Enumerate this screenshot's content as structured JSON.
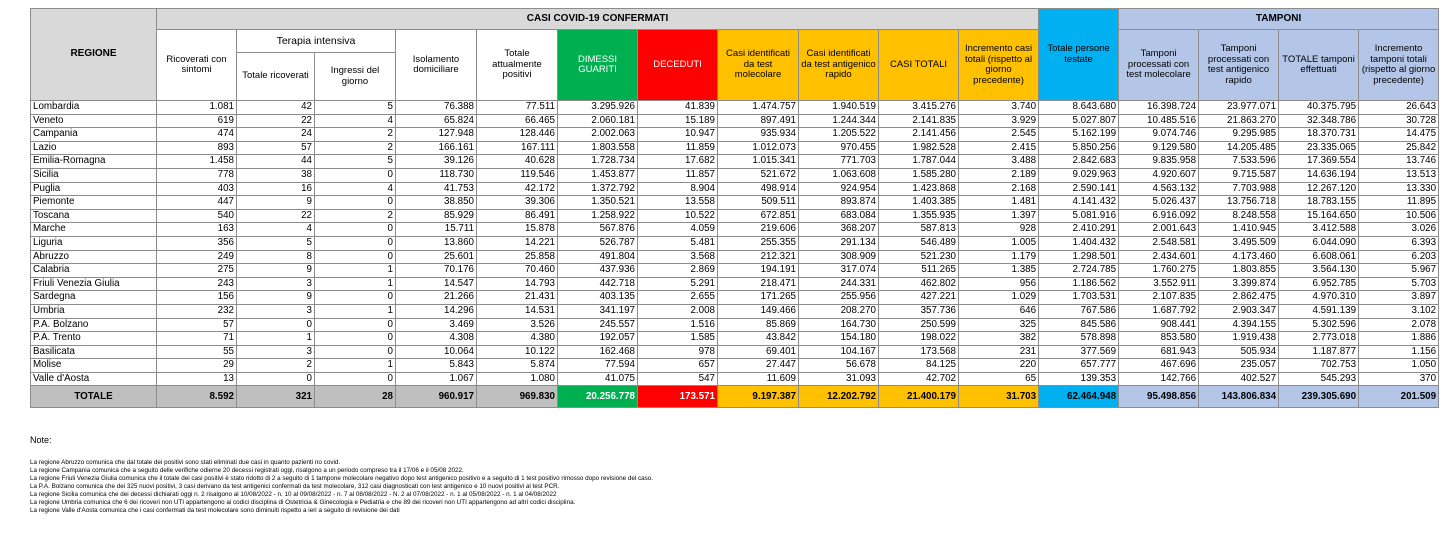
{
  "table": {
    "regione_header": "REGIONE",
    "casi_title": "CASI COVID-19 CONFERMATI",
    "terapia_header": "Terapia intensiva",
    "tamponi_title": "TAMPONI",
    "columns": [
      "Ricoverati con sintomi",
      "Totale ricoverati",
      "Ingressi del giorno",
      "Isolamento domiciliare",
      "Totale attualmente positivi",
      "DIMESSI GUARITI",
      "DECEDUTI",
      "Casi identificati da test molecolare",
      "Casi identificati da test antigenico rapido",
      "CASI TOTALI",
      "Incremento casi totali (rispetto al giorno precedente)",
      "Totale persone testate",
      "Tamponi processati con test molecolare",
      "Tamponi processati con test antigenico rapido",
      "TOTALE tamponi effettuati",
      "Incremento tamponi totali (rispetto al giorno precedente)"
    ],
    "rows": [
      [
        "Lombardia",
        "1.081",
        "42",
        "5",
        "76.388",
        "77.511",
        "3.295.926",
        "41.839",
        "1.474.757",
        "1.940.519",
        "3.415.276",
        "3.740",
        "8.643.680",
        "16.398.724",
        "23.977.071",
        "40.375.795",
        "26.643"
      ],
      [
        "Veneto",
        "619",
        "22",
        "4",
        "65.824",
        "66.465",
        "2.060.181",
        "15.189",
        "897.491",
        "1.244.344",
        "2.141.835",
        "3.929",
        "5.027.807",
        "10.485.516",
        "21.863.270",
        "32.348.786",
        "30.728"
      ],
      [
        "Campania",
        "474",
        "24",
        "2",
        "127.948",
        "128.446",
        "2.002.063",
        "10.947",
        "935.934",
        "1.205.522",
        "2.141.456",
        "2.545",
        "5.162.199",
        "9.074.746",
        "9.295.985",
        "18.370.731",
        "14.475"
      ],
      [
        "Lazio",
        "893",
        "57",
        "2",
        "166.161",
        "167.111",
        "1.803.558",
        "11.859",
        "1.012.073",
        "970.455",
        "1.982.528",
        "2.415",
        "5.850.256",
        "9.129.580",
        "14.205.485",
        "23.335.065",
        "25.842"
      ],
      [
        "Emilia-Romagna",
        "1.458",
        "44",
        "5",
        "39.126",
        "40.628",
        "1.728.734",
        "17.682",
        "1.015.341",
        "771.703",
        "1.787.044",
        "3.488",
        "2.842.683",
        "9.835.958",
        "7.533.596",
        "17.369.554",
        "13.746"
      ],
      [
        "Sicilia",
        "778",
        "38",
        "0",
        "118.730",
        "119.546",
        "1.453.877",
        "11.857",
        "521.672",
        "1.063.608",
        "1.585.280",
        "2.189",
        "9.029.963",
        "4.920.607",
        "9.715.587",
        "14.636.194",
        "13.513"
      ],
      [
        "Puglia",
        "403",
        "16",
        "4",
        "41.753",
        "42.172",
        "1.372.792",
        "8.904",
        "498.914",
        "924.954",
        "1.423.868",
        "2.168",
        "2.590.141",
        "4.563.132",
        "7.703.988",
        "12.267.120",
        "13.330"
      ],
      [
        "Piemonte",
        "447",
        "9",
        "0",
        "38.850",
        "39.306",
        "1.350.521",
        "13.558",
        "509.511",
        "893.874",
        "1.403.385",
        "1.481",
        "4.141.432",
        "5.026.437",
        "13.756.718",
        "18.783.155",
        "11.895"
      ],
      [
        "Toscana",
        "540",
        "22",
        "2",
        "85.929",
        "86.491",
        "1.258.922",
        "10.522",
        "672.851",
        "683.084",
        "1.355.935",
        "1.397",
        "5.081.916",
        "6.916.092",
        "8.248.558",
        "15.164.650",
        "10.506"
      ],
      [
        "Marche",
        "163",
        "4",
        "0",
        "15.711",
        "15.878",
        "567.876",
        "4.059",
        "219.606",
        "368.207",
        "587.813",
        "928",
        "2.410.291",
        "2.001.643",
        "1.410.945",
        "3.412.588",
        "3.026"
      ],
      [
        "Liguria",
        "356",
        "5",
        "0",
        "13.860",
        "14.221",
        "526.787",
        "5.481",
        "255.355",
        "291.134",
        "546.489",
        "1.005",
        "1.404.432",
        "2.548.581",
        "3.495.509",
        "6.044.090",
        "6.393"
      ],
      [
        "Abruzzo",
        "249",
        "8",
        "0",
        "25.601",
        "25.858",
        "491.804",
        "3.568",
        "212.321",
        "308.909",
        "521.230",
        "1.179",
        "1.298.501",
        "2.434.601",
        "4.173.460",
        "6.608.061",
        "6.203"
      ],
      [
        "Calabria",
        "275",
        "9",
        "1",
        "70.176",
        "70.460",
        "437.936",
        "2.869",
        "194.191",
        "317.074",
        "511.265",
        "1.385",
        "2.724.785",
        "1.760.275",
        "1.803.855",
        "3.564.130",
        "5.967"
      ],
      [
        "Friuli Venezia Giulia",
        "243",
        "3",
        "1",
        "14.547",
        "14.793",
        "442.718",
        "5.291",
        "218.471",
        "244.331",
        "462.802",
        "956",
        "1.186.562",
        "3.552.911",
        "3.399.874",
        "6.952.785",
        "5.703"
      ],
      [
        "Sardegna",
        "156",
        "9",
        "0",
        "21.266",
        "21.431",
        "403.135",
        "2.655",
        "171.265",
        "255.956",
        "427.221",
        "1.029",
        "1.703.531",
        "2.107.835",
        "2.862.475",
        "4.970.310",
        "3.897"
      ],
      [
        "Umbria",
        "232",
        "3",
        "1",
        "14.296",
        "14.531",
        "341.197",
        "2.008",
        "149.466",
        "208.270",
        "357.736",
        "646",
        "767.586",
        "1.687.792",
        "2.903.347",
        "4.591.139",
        "3.102"
      ],
      [
        "P.A. Bolzano",
        "57",
        "0",
        "0",
        "3.469",
        "3.526",
        "245.557",
        "1.516",
        "85.869",
        "164.730",
        "250.599",
        "325",
        "845.586",
        "908.441",
        "4.394.155",
        "5.302.596",
        "2.078"
      ],
      [
        "P.A. Trento",
        "71",
        "1",
        "0",
        "4.308",
        "4.380",
        "192.057",
        "1.585",
        "43.842",
        "154.180",
        "198.022",
        "382",
        "578.898",
        "853.580",
        "1.919.438",
        "2.773.018",
        "1.886"
      ],
      [
        "Basilicata",
        "55",
        "3",
        "0",
        "10.064",
        "10.122",
        "162.468",
        "978",
        "69.401",
        "104.167",
        "173.568",
        "231",
        "377.569",
        "681.943",
        "505.934",
        "1.187.877",
        "1.156"
      ],
      [
        "Molise",
        "29",
        "2",
        "1",
        "5.843",
        "5.874",
        "77.594",
        "657",
        "27.447",
        "56.678",
        "84.125",
        "220",
        "657.777",
        "467.696",
        "235.057",
        "702.753",
        "1.050"
      ],
      [
        "Valle d'Aosta",
        "13",
        "0",
        "0",
        "1.067",
        "1.080",
        "41.075",
        "547",
        "11.609",
        "31.093",
        "42.702",
        "65",
        "139.353",
        "142.766",
        "402.527",
        "545.293",
        "370"
      ]
    ],
    "total": [
      "TOTALE",
      "8.592",
      "321",
      "28",
      "960.917",
      "969.830",
      "20.256.778",
      "173.571",
      "9.197.387",
      "12.202.792",
      "21.400.179",
      "31.703",
      "62.464.948",
      "95.498.856",
      "143.806.834",
      "239.305.690",
      "201.509"
    ]
  },
  "notes": {
    "title": "Note:",
    "lines": [
      "La regione Abruzzo comunica che dal totale dei positivi sono stati eliminati due casi in quanto pazienti no covid.",
      "La regione Campania comunica che a seguito delle verifiche odierne 20 decessi registrati oggi, risalgono a un periodo compreso tra il 17/06 e il 05/08 2022.",
      "La regione Friuli Venezia Giulia comunica che il totale dei casi positivi è stato ridotto di 2 a seguito di 1 tampone molecolare negativo dopo test antigenico positivo e a seguito di 1 test positivo rimosso dopo revisione del caso.",
      "La P.A. Bolzano comunica che dei 325 nuovi positivi, 3 casi derivano da test antigenici confermati da test molecolare, 312 casi diagnosticati con test antigenico e 10 nuovi positivi al test PCR.",
      "La regione Sicilia comunica che dei decessi dichiarati oggi n. 2 risalgono al 10/08/2022 - n. 10 al 09/08/2022 - n. 7 al 08/08/2022 - N. 2 al 07/08/2022 - n. 1 al 05/08/2022 - n. 1 al 04/08/2022",
      "La regione Umbria comunica che 6 dei ricoveri non UTI appartengono ai codici disciplina di Ostetricia & Ginecologia e Pediatria e che 89 dei ricoveri non UTI appartengono ad altri codici disciplina.",
      "La regione Valle d'Aosta  comunica che i casi confermati da test molecolare sono diminuiti rispetto a ieri a seguito di revisione dei dati"
    ]
  }
}
